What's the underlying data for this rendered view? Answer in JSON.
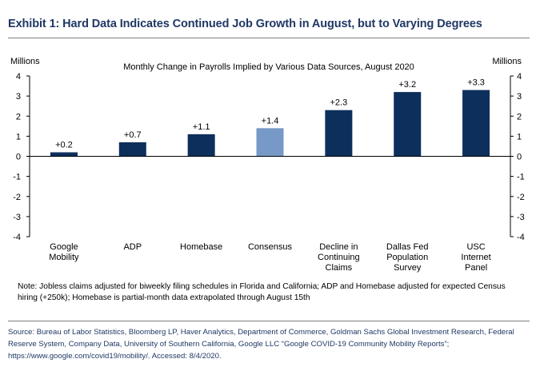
{
  "exhibit_title": "Exhibit 1: Hard Data Indicates Continued Job Growth in August, but to Varying Degrees",
  "note": "Note: Jobless claims adjusted for biweekly filing schedules in Florida and California; ADP and Homebase adjusted for expected Census hiring (+250k); Homebase is partial-month data extrapolated through August 15th",
  "source": "Source: Bureau of Labor Statistics, Bloomberg LP, Haver Analytics, Department of Commerce, Goldman Sachs Global Investment Research, Federal Reserve System, Company Data, University of Southern California, Google LLC “Google COVID-19 Community Mobility Reports”; https://www.google.com/covid19/mobility/. Accessed: 8/4/2020.",
  "colors": {
    "primary_bar": "#0d2f5c",
    "highlight_bar": "#7799c8",
    "title": "#1f3864"
  },
  "chart_data": {
    "type": "bar",
    "title": "Monthly Change in Payrolls Implied by Various Data Sources, August 2020",
    "ylabel_left": "Millions",
    "ylabel_right": "Millions",
    "ylim": [
      -4,
      4
    ],
    "yticks": [
      4,
      3,
      2,
      1,
      0,
      -1,
      -2,
      -3,
      -4
    ],
    "categories": [
      [
        "Google",
        "Mobility"
      ],
      [
        "ADP"
      ],
      [
        "Homebase"
      ],
      [
        "Consensus"
      ],
      [
        "Decline in",
        "Continuing",
        "Claims"
      ],
      [
        "Dallas Fed",
        "Population",
        "Survey"
      ],
      [
        "USC",
        "Internet",
        "Panel"
      ]
    ],
    "values": [
      0.2,
      0.7,
      1.1,
      1.4,
      2.3,
      3.2,
      3.3
    ],
    "data_labels": [
      "+0.2",
      "+0.7",
      "+1.1",
      "+1.4",
      "+2.3",
      "+3.2",
      "+3.3"
    ],
    "highlight_index": 3,
    "grid": false,
    "legend": "none"
  }
}
